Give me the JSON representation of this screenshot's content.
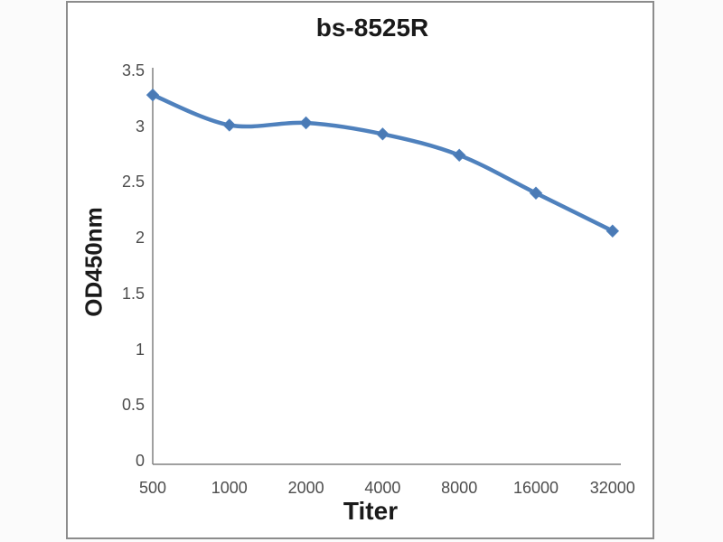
{
  "chart_data": {
    "type": "line",
    "title": "bs-8525R",
    "xlabel": "Titer",
    "ylabel": "OD450nm",
    "categories": [
      "500",
      "1000",
      "2000",
      "4000",
      "8000",
      "16000",
      "32000"
    ],
    "series": [
      {
        "name": "bs-8525R",
        "values": [
          3.28,
          3.01,
          3.03,
          2.93,
          2.74,
          2.4,
          2.06
        ]
      }
    ],
    "ylim": [
      0,
      3.5
    ],
    "yticks": [
      {
        "value": 3.5,
        "label": "3.5"
      },
      {
        "value": 3,
        "label": "3"
      },
      {
        "value": 2.5,
        "label": "2.5"
      },
      {
        "value": 2,
        "label": "2"
      },
      {
        "value": 1.5,
        "label": "1.5"
      },
      {
        "value": 1,
        "label": "1"
      },
      {
        "value": 0.5,
        "label": "0.5"
      },
      {
        "value": 0,
        "label": "0"
      }
    ],
    "grid": false,
    "legend": false,
    "smooth": true,
    "marker": "diamond",
    "line_color": "#4f81bd",
    "marker_color": "#4a7ab5",
    "axis_color": "#808080",
    "tick_label_color": "#4d4d4d",
    "title_color": "#1a1a1a",
    "frame_border_color": "#8c8c8c"
  }
}
